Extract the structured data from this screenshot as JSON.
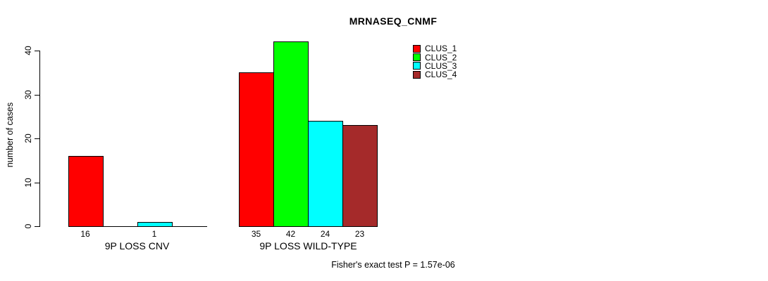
{
  "chart_data": {
    "type": "bar",
    "title": "MRNASEQ_CNMF",
    "ylabel": "number of cases",
    "xlabel": "",
    "ylim": [
      0,
      40
    ],
    "yticks": [
      0,
      10,
      20,
      30,
      40
    ],
    "grid": false,
    "categories": [
      "9P LOSS CNV",
      "9P LOSS WILD-TYPE"
    ],
    "series": [
      {
        "name": "CLUS_1",
        "color": "#ff0000",
        "values": [
          16,
          35
        ]
      },
      {
        "name": "CLUS_2",
        "color": "#00ff00",
        "values": [
          0,
          42
        ]
      },
      {
        "name": "CLUS_3",
        "color": "#00ffff",
        "values": [
          1,
          24
        ]
      },
      {
        "name": "CLUS_4",
        "color": "#a52a2a",
        "values": [
          0,
          23
        ]
      }
    ],
    "bar_labels": [
      [
        "16",
        "",
        "1",
        ""
      ],
      [
        "35",
        "42",
        "24",
        "23"
      ]
    ],
    "legend_position": "top-right",
    "annotation": "Fisher's exact test P = 1.57e-06"
  }
}
